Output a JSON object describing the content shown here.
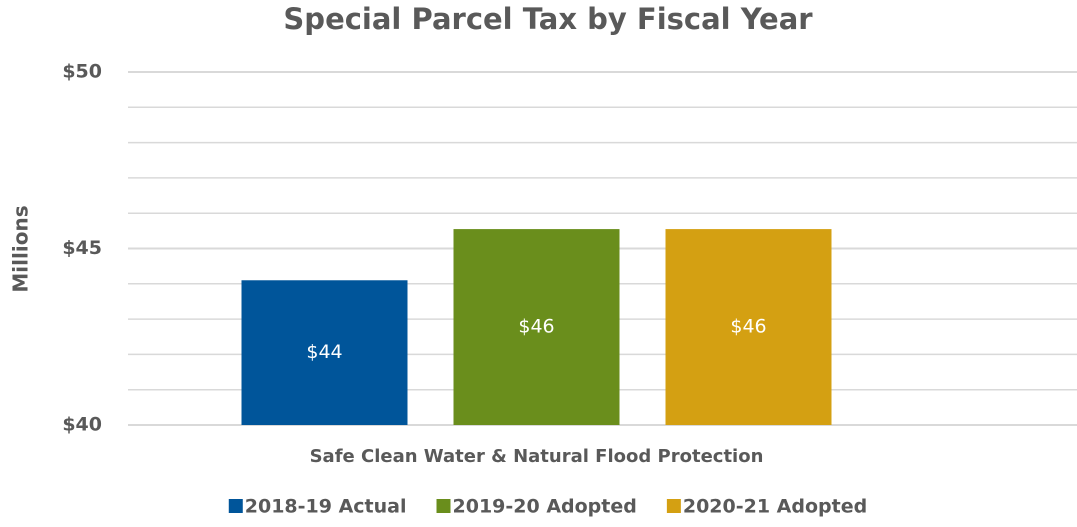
{
  "chart_data": {
    "type": "bar",
    "title": "Special Parcel Tax by Fiscal Year",
    "y_label": "Millions",
    "categories": [
      "Safe Clean Water & Natural Flood Protection"
    ],
    "series": [
      {
        "name": "2018-19 Actual",
        "color": "#00559a",
        "values": [
          44.1
        ],
        "value_labels": [
          "$44"
        ]
      },
      {
        "name": "2019-20 Adopted",
        "color": "#6a8e1c",
        "values": [
          45.55
        ],
        "value_labels": [
          "$46"
        ]
      },
      {
        "name": "2020-21 Adopted",
        "color": "#d4a012",
        "values": [
          45.55
        ],
        "value_labels": [
          "$46"
        ]
      }
    ],
    "ylim": [
      40,
      50
    ],
    "yticks": [
      {
        "value": 40,
        "label": "$40"
      },
      {
        "value": 45,
        "label": "$45"
      },
      {
        "value": 50,
        "label": "$50"
      }
    ],
    "y_minor_ticks": [
      41,
      42,
      43,
      44,
      46,
      47,
      48,
      49
    ],
    "grid": true,
    "legend": "bottom"
  }
}
